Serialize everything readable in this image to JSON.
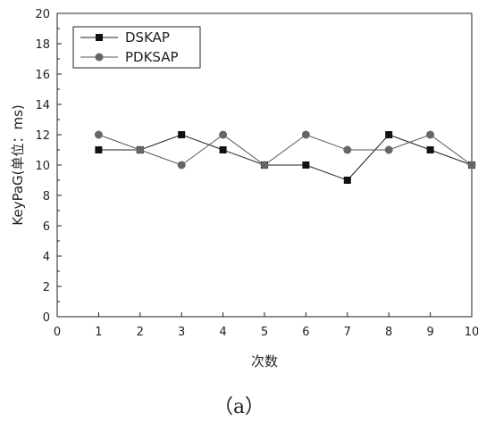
{
  "chart_data": {
    "type": "line",
    "title": "",
    "xlabel": "次数",
    "ylabel": "KeyPaG(单位：ms)",
    "xlim": [
      0,
      10
    ],
    "ylim": [
      0,
      20
    ],
    "xticks": [
      "0",
      "1",
      "2",
      "3",
      "4",
      "5",
      "6",
      "7",
      "8",
      "9",
      "10"
    ],
    "yticks": [
      "0",
      "2",
      "4",
      "6",
      "8",
      "10",
      "12",
      "14",
      "16",
      "18",
      "20"
    ],
    "grid": false,
    "legend_position": "top-left",
    "x": [
      1,
      2,
      3,
      4,
      5,
      6,
      7,
      8,
      9,
      10
    ],
    "series": [
      {
        "name": "DSKAP",
        "marker": "square",
        "color": "#222222",
        "values": [
          11,
          11,
          12,
          11,
          10,
          10,
          9,
          12,
          11,
          10
        ]
      },
      {
        "name": "PDKSAP",
        "marker": "circle",
        "color": "#555555",
        "values": [
          12,
          11,
          10,
          12,
          10,
          12,
          11,
          11,
          12,
          10
        ]
      }
    ]
  },
  "caption": "（a）"
}
